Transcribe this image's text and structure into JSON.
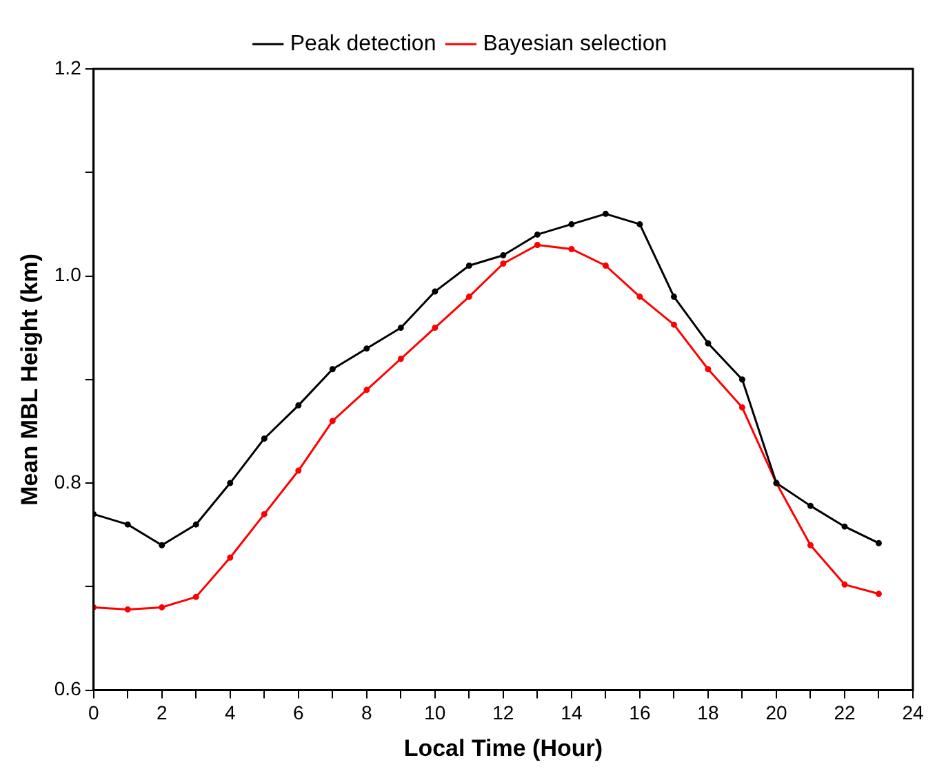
{
  "chart_data": {
    "type": "line",
    "xlabel": "Local Time (Hour)",
    "ylabel": "Mean MBL Height (km)",
    "x": [
      0,
      1,
      2,
      3,
      4,
      5,
      6,
      7,
      8,
      9,
      10,
      11,
      12,
      13,
      14,
      15,
      16,
      17,
      18,
      19,
      20,
      21,
      22,
      23
    ],
    "series": [
      {
        "name": "Peak detection",
        "color": "#000000",
        "values": [
          0.77,
          0.76,
          0.74,
          0.76,
          0.8,
          0.843,
          0.875,
          0.91,
          0.93,
          0.95,
          0.985,
          1.01,
          1.02,
          1.04,
          1.05,
          1.06,
          1.05,
          0.98,
          0.935,
          0.9,
          0.8,
          0.778,
          0.758,
          0.742
        ]
      },
      {
        "name": "Bayesian selection",
        "color": "#ff0000",
        "values": [
          0.68,
          0.678,
          0.68,
          0.69,
          0.728,
          0.77,
          0.812,
          0.86,
          0.89,
          0.92,
          0.95,
          0.98,
          1.012,
          1.03,
          1.026,
          1.01,
          0.98,
          0.953,
          0.91,
          0.873,
          0.8,
          0.74,
          0.702,
          0.693
        ]
      }
    ],
    "xlim": [
      0,
      24
    ],
    "xticks": [
      0,
      {
        "value": 1,
        "label": null
      },
      2,
      {
        "value": 3,
        "label": null
      },
      4,
      {
        "value": 5,
        "label": null
      },
      6,
      {
        "value": 7,
        "label": null
      },
      8,
      {
        "value": 9,
        "label": null
      },
      10,
      {
        "value": 11,
        "label": null
      },
      12,
      {
        "value": 13,
        "label": null
      },
      14,
      {
        "value": 15,
        "label": null
      },
      16,
      {
        "value": 17,
        "label": null
      },
      18,
      {
        "value": 19,
        "label": null
      },
      20,
      {
        "value": 21,
        "label": null
      },
      22,
      {
        "value": 23,
        "label": null
      },
      24
    ],
    "ylim": [
      0.6,
      1.2
    ],
    "yticks": [
      {
        "value": 0.6,
        "label": "0.6"
      },
      {
        "value": 0.7,
        "label": null
      },
      {
        "value": 0.8,
        "label": "0.8"
      },
      {
        "value": 0.9,
        "label": null
      },
      {
        "value": 1.0,
        "label": "1.0"
      },
      {
        "value": 1.1,
        "label": null
      },
      {
        "value": 1.2,
        "label": "1.2"
      }
    ],
    "grid": false,
    "legend": "top",
    "marker": "circle",
    "line_style": "solid"
  }
}
